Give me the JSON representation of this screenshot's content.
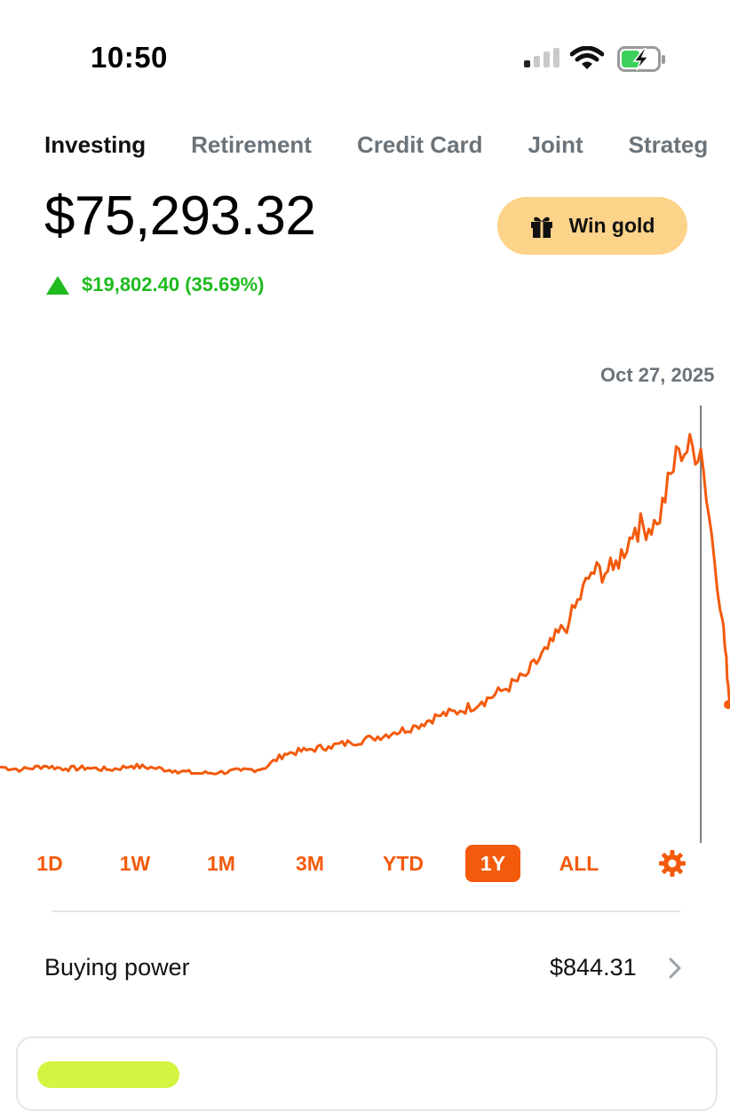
{
  "status_bar": {
    "time": "10:50",
    "icons": [
      "signal-icon",
      "wifi-icon",
      "battery-charging-icon"
    ]
  },
  "tabs": [
    {
      "label": "Investing",
      "active": true
    },
    {
      "label": "Retirement",
      "active": false
    },
    {
      "label": "Credit Card",
      "active": false
    },
    {
      "label": "Joint",
      "active": false
    },
    {
      "label": "Strateg",
      "active": false
    }
  ],
  "portfolio": {
    "total_value": "$75,293.32",
    "change_text": "$19,802.40 (35.69%)",
    "change_direction": "up",
    "change_color": "#1fbb1f"
  },
  "promo": {
    "label": "Win gold",
    "icon": "gift-icon",
    "background": "#fdd38a"
  },
  "chart": {
    "selected_date": "Oct 27, 2025",
    "line_color": "#f35a0c",
    "accent": "#f45a0c"
  },
  "chart_data": {
    "type": "line",
    "title": "",
    "xlabel": "",
    "ylabel": "",
    "x": [
      0,
      3,
      6,
      9,
      12,
      15,
      18,
      21,
      24,
      27,
      30,
      33,
      36,
      39,
      42,
      45,
      48,
      51,
      54,
      57,
      60,
      63,
      66,
      69,
      72,
      75,
      78,
      81,
      84,
      87,
      90,
      93,
      96,
      99,
      100
    ],
    "values": [
      5.8,
      5.5,
      5.9,
      5.6,
      5.7,
      5.5,
      5.9,
      5.7,
      5.4,
      5.1,
      5.2,
      5.4,
      5.6,
      7.2,
      7.6,
      8.0,
      8.4,
      8.9,
      9.5,
      10.2,
      11.3,
      11.8,
      12.8,
      14.1,
      15.6,
      18.5,
      21.5,
      26.7,
      27.0,
      31.5,
      31.9,
      40.0,
      40.0,
      21.5,
      12.5
    ],
    "series_name": "",
    "selected_index": 32,
    "ranges": [
      "1D",
      "1W",
      "1M",
      "3M",
      "YTD",
      "1Y",
      "ALL"
    ],
    "active_range": "1Y",
    "settings_icon": "gear-icon"
  },
  "buying_power": {
    "label": "Buying power",
    "value": "$844.31",
    "chevron_icon": "chevron-right-icon"
  }
}
